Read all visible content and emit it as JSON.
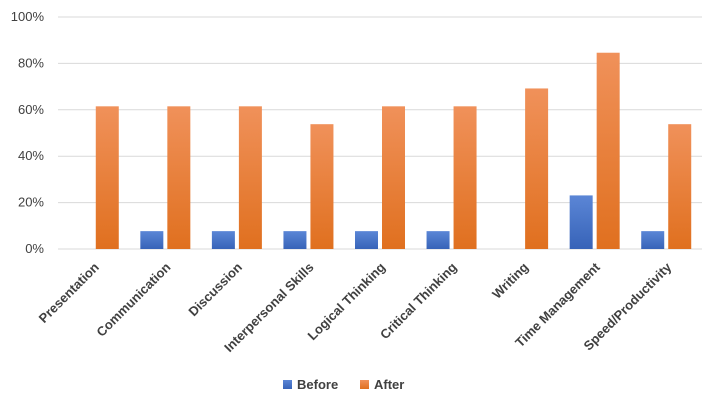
{
  "chart_data": {
    "type": "bar",
    "categories": [
      "Presentation",
      "Communication",
      "Discussion",
      "Interpersonal Skills",
      "Logical Thinking",
      "Critical Thinking",
      "Writing",
      "Time Management",
      "Speed/Productivity"
    ],
    "series": [
      {
        "name": "Before",
        "color": "#4472C4",
        "values": [
          0,
          7.7,
          7.7,
          7.7,
          7.7,
          7.7,
          0,
          23.1,
          7.7
        ]
      },
      {
        "name": "After",
        "color": "#ED7D31",
        "values": [
          61.5,
          61.5,
          61.5,
          53.8,
          61.5,
          61.5,
          69.2,
          84.6,
          53.8
        ]
      }
    ],
    "yticks": [
      "0%",
      "20%",
      "40%",
      "60%",
      "80%",
      "100%"
    ],
    "ylim": [
      0,
      100
    ],
    "grid": true,
    "legend": "bottom"
  }
}
